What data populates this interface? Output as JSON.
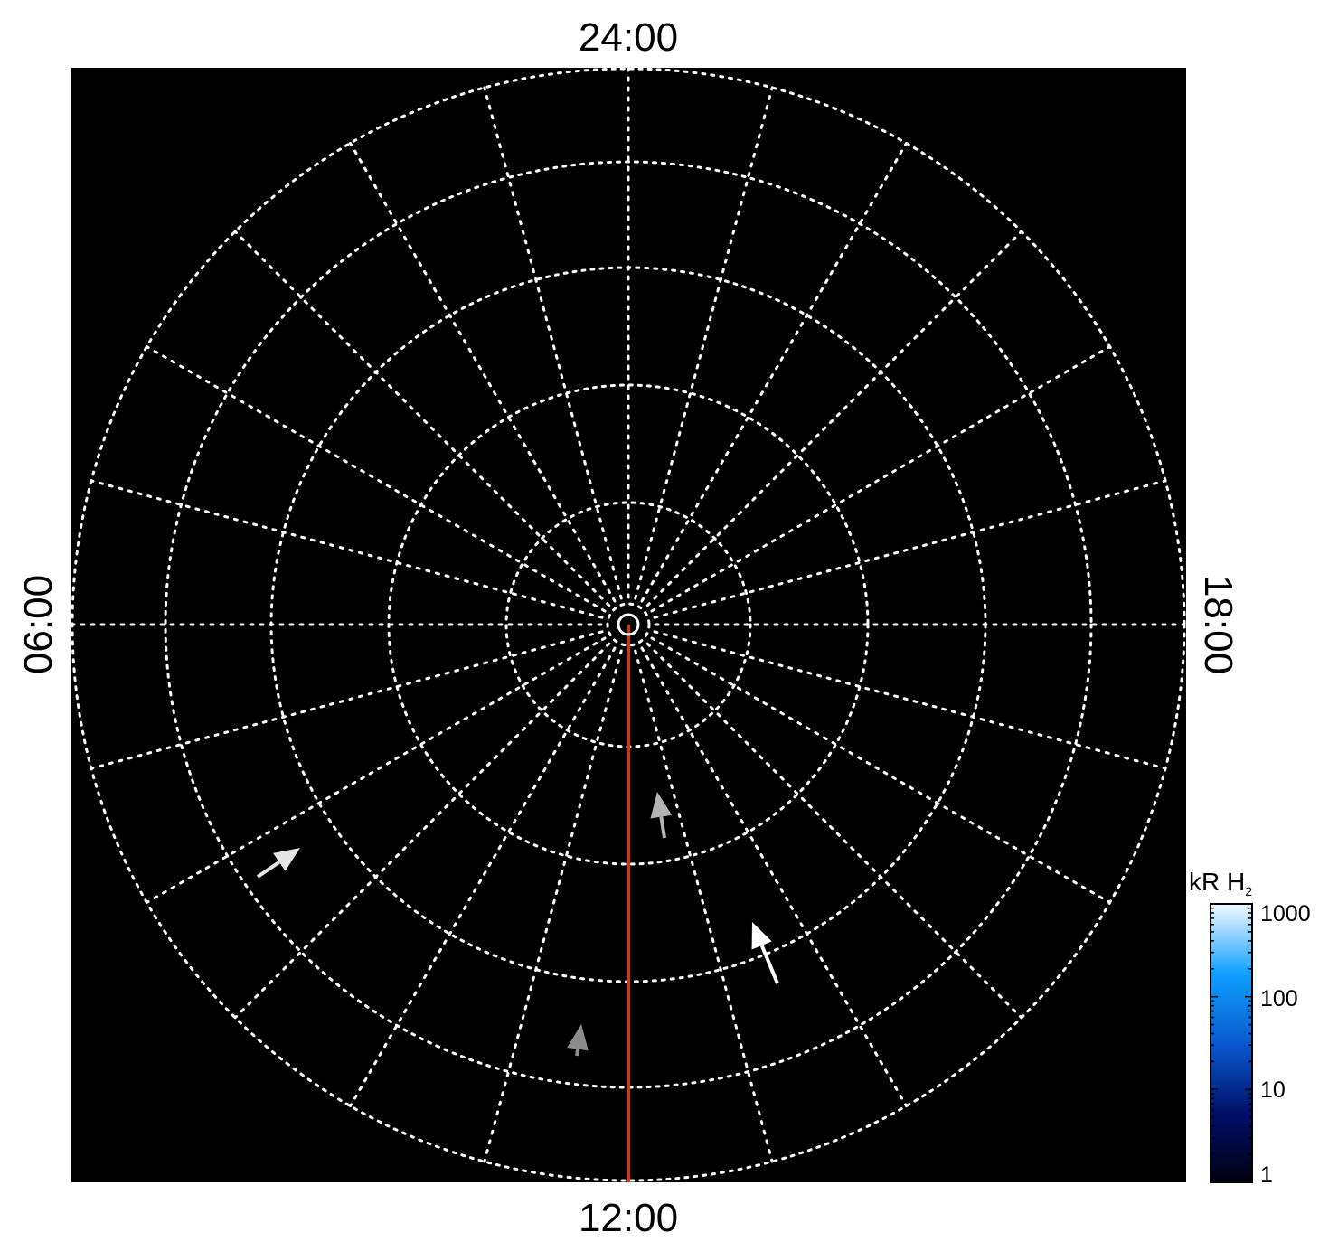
{
  "chart_data": {
    "type": "polar",
    "projection": "polar",
    "local_time_labels": {
      "top": "24:00",
      "left": "06:00",
      "right": "18:00",
      "bottom": "12:00"
    },
    "grid": true,
    "grid_style": "dotted",
    "meridian_step_hours": 1,
    "background_color": "#000000",
    "grid_color": "#ffffff",
    "highlight_meridian": {
      "local_time": "12:00",
      "color": "#c83a10"
    },
    "colorbar": {
      "title": "kR H",
      "title_subscript": "2",
      "scale": "log",
      "range": [
        1,
        1000
      ],
      "tick_labels": [
        "1000",
        "100",
        "10",
        "1"
      ],
      "colors": [
        "#000010",
        "#00106a",
        "#0a5ad0",
        "#10a0ff",
        "#f4faff"
      ]
    }
  }
}
